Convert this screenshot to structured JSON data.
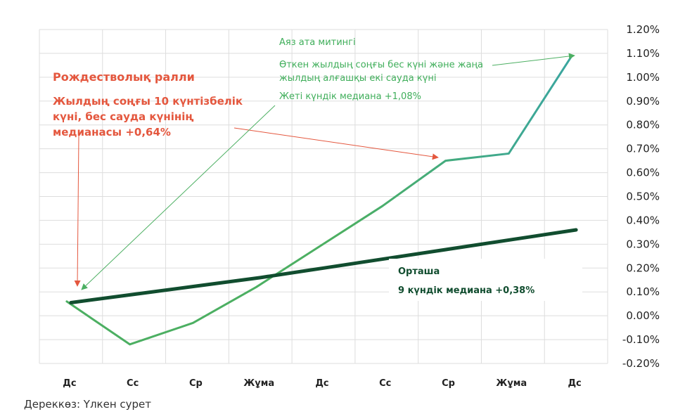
{
  "chart_data": {
    "type": "line",
    "categories": [
      "Дс",
      "Сс",
      "Ср",
      "Жұма",
      "Дс",
      "Сс",
      "Ср",
      "Жұма",
      "Дс"
    ],
    "y_tick_labels": [
      "1.20%",
      "1.10%",
      "1.00%",
      "0.90%",
      "0.80%",
      "0.70%",
      "0.60%",
      "0.50%",
      "0.40%",
      "0.30%",
      "0.20%",
      "0.10%",
      "0.00%",
      "-0.10%",
      "-0.20%"
    ],
    "ylim": [
      -0.2,
      1.2
    ],
    "grid": true,
    "series": [
      {
        "color": "#4caf62",
        "values": [
          0.06,
          -0.12,
          -0.03,
          0.12,
          0.29,
          0.46,
          0.65,
          0.68,
          1.09
        ]
      },
      {
        "color": "#114d2f",
        "values": [
          0.055,
          0.09,
          0.125,
          0.16,
          0.2,
          0.24,
          0.28,
          0.32,
          0.36
        ]
      }
    ],
    "gradient_colors": {
      "start": "#4caf62",
      "end": "#3aa6a0"
    },
    "annotations": {
      "christmas": {
        "title": "Рождестволық ралли",
        "body": "Жылдың соңғы 10 күнтізбелік\nкүні, бес сауда күнінің\nмедианасы +0,64%",
        "color": "#e4573e"
      },
      "santa": {
        "title": "Аяз ата митингі",
        "body": "Өткен жылдың соңғы бес күні және жаңа\nжылдың алғашқы екі сауда күні",
        "median": "Жеті күндік медиана +1,08%",
        "color": "#3fae5a"
      },
      "average": {
        "title": "Орташа",
        "median": "9 күндік медиана +0,38%",
        "color": "#114d2f"
      }
    }
  },
  "source": "Дереккөз: Үлкен сурет"
}
